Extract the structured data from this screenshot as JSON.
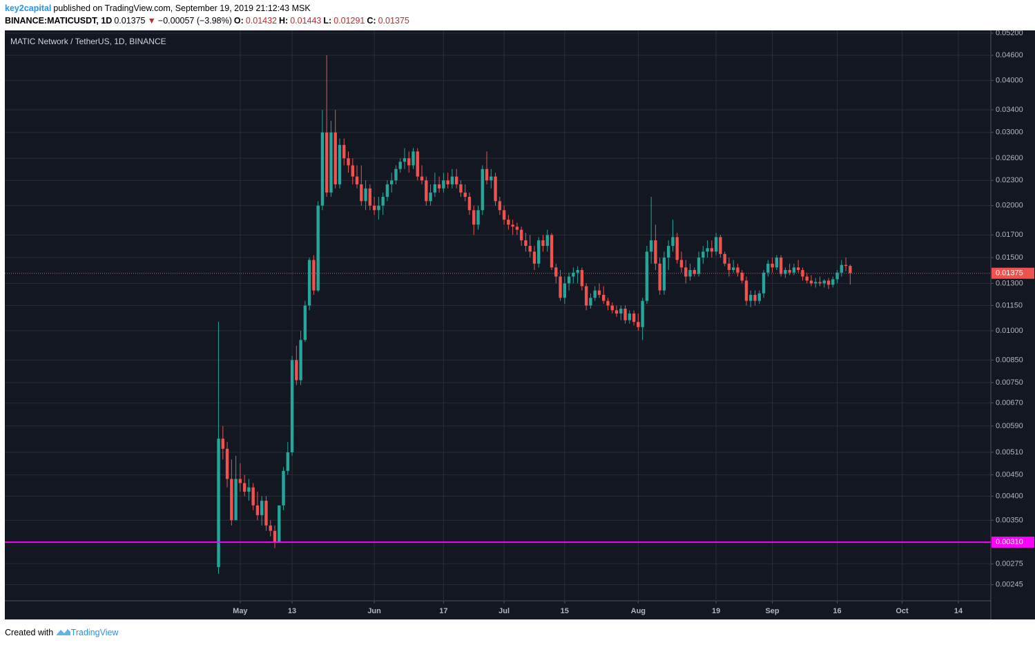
{
  "header": {
    "author": "key2capital",
    "published": "published on TradingView.com, September 19, 2019 21:12:43 MSK",
    "symbol": "BINANCE:MATICUSDT, 1D",
    "last": "0.01375",
    "change": "−0.00057 (−3.98%)",
    "open_label": "O:",
    "open": "0.01432",
    "high_label": "H:",
    "high": "0.01443",
    "low_label": "L:",
    "low": "0.01291",
    "close_label": "C:",
    "close": "0.01375"
  },
  "footer": {
    "created": "Created with",
    "brand": "TradingView"
  },
  "chart_data": {
    "type": "candlestick",
    "title": "MATIC Network / TetherUS, 1D, BINANCE",
    "log_scale": true,
    "grid": true,
    "up_color": "#26a69a",
    "down_color": "#ef5350",
    "xlim": [
      -54.4,
      173.5
    ],
    "ylim": [
      0.00224,
      0.0528
    ],
    "xticks": [
      {
        "value": 0,
        "label": "May"
      },
      {
        "value": 12,
        "label": "13"
      },
      {
        "value": 31,
        "label": "Jun"
      },
      {
        "value": 47,
        "label": "17"
      },
      {
        "value": 61,
        "label": "Jul"
      },
      {
        "value": 75,
        "label": "15"
      },
      {
        "value": 92,
        "label": "Aug"
      },
      {
        "value": 110,
        "label": "19"
      },
      {
        "value": 123,
        "label": "Sep"
      },
      {
        "value": 138,
        "label": "16"
      },
      {
        "value": 153,
        "label": "Oct"
      },
      {
        "value": 166,
        "label": "14"
      }
    ],
    "yticks": [
      {
        "value": 0.052,
        "label": "0.05200"
      },
      {
        "value": 0.046,
        "label": "0.04600"
      },
      {
        "value": 0.04,
        "label": "0.04000"
      },
      {
        "value": 0.034,
        "label": "0.03400"
      },
      {
        "value": 0.03,
        "label": "0.03000"
      },
      {
        "value": 0.026,
        "label": "0.02600"
      },
      {
        "value": 0.023,
        "label": "0.02300"
      },
      {
        "value": 0.02,
        "label": "0.02000"
      },
      {
        "value": 0.017,
        "label": "0.01700"
      },
      {
        "value": 0.015,
        "label": "0.01500"
      },
      {
        "value": 0.013,
        "label": "0.01300"
      },
      {
        "value": 0.0115,
        "label": "0.01150"
      },
      {
        "value": 0.01,
        "label": "0.01000"
      },
      {
        "value": 0.0085,
        "label": "0.00850"
      },
      {
        "value": 0.0075,
        "label": "0.00750"
      },
      {
        "value": 0.0067,
        "label": "0.00670"
      },
      {
        "value": 0.0059,
        "label": "0.00590"
      },
      {
        "value": 0.0051,
        "label": "0.00510"
      },
      {
        "value": 0.0045,
        "label": "0.00450"
      },
      {
        "value": 0.004,
        "label": "0.00400"
      },
      {
        "value": 0.0035,
        "label": "0.00350"
      },
      {
        "value": 0.0031,
        "label": "0.00310"
      },
      {
        "value": 0.00275,
        "label": "0.00275"
      },
      {
        "value": 0.00245,
        "label": "0.00245"
      }
    ],
    "hlines": [
      {
        "value": 0.0031,
        "label": "0.00310",
        "color": "#ff00ff"
      }
    ],
    "last_price": {
      "value": 0.01375,
      "label": "0.01375",
      "color": "#ef5350"
    },
    "x": [
      -5,
      -4,
      -3,
      -2,
      -1,
      0,
      1,
      2,
      3,
      4,
      5,
      6,
      7,
      8,
      9,
      10,
      11,
      12,
      13,
      14,
      15,
      16,
      17,
      18,
      19,
      20,
      21,
      22,
      23,
      24,
      25,
      26,
      27,
      28,
      29,
      30,
      31,
      32,
      33,
      34,
      35,
      36,
      37,
      38,
      39,
      40,
      41,
      42,
      43,
      44,
      45,
      46,
      47,
      48,
      49,
      50,
      51,
      52,
      53,
      54,
      55,
      56,
      57,
      58,
      59,
      60,
      61,
      62,
      63,
      64,
      65,
      66,
      67,
      68,
      69,
      70,
      71,
      72,
      73,
      74,
      75,
      76,
      77,
      78,
      79,
      80,
      81,
      82,
      83,
      84,
      85,
      86,
      87,
      88,
      89,
      90,
      91,
      92,
      93,
      94,
      95,
      96,
      97,
      98,
      99,
      100,
      101,
      102,
      103,
      104,
      105,
      106,
      107,
      108,
      109,
      110,
      111,
      112,
      113,
      114,
      115,
      116,
      117,
      118,
      119,
      120,
      121,
      122,
      123,
      124,
      125,
      126,
      127,
      128,
      129,
      130,
      131,
      132,
      133,
      134,
      135,
      136,
      137,
      138,
      139,
      140,
      141
    ],
    "ohlc": [
      [
        0.0027,
        0.0105,
        0.0026,
        0.0055
      ],
      [
        0.0055,
        0.0059,
        0.0049,
        0.0052
      ],
      [
        0.0052,
        0.0054,
        0.0042,
        0.0044
      ],
      [
        0.0044,
        0.0049,
        0.0034,
        0.0035
      ],
      [
        0.0035,
        0.005,
        0.0035,
        0.0044
      ],
      [
        0.0044,
        0.0048,
        0.0041,
        0.0043
      ],
      [
        0.0043,
        0.0045,
        0.004,
        0.0041
      ],
      [
        0.0041,
        0.0044,
        0.0039,
        0.0042
      ],
      [
        0.0042,
        0.0043,
        0.0037,
        0.0038
      ],
      [
        0.0038,
        0.0041,
        0.0035,
        0.0036
      ],
      [
        0.0036,
        0.004,
        0.0034,
        0.0039
      ],
      [
        0.0039,
        0.004,
        0.0033,
        0.0034
      ],
      [
        0.0034,
        0.0035,
        0.0032,
        0.0033
      ],
      [
        0.0033,
        0.0034,
        0.003,
        0.0031
      ],
      [
        0.0031,
        0.0038,
        0.0031,
        0.0038
      ],
      [
        0.0038,
        0.0047,
        0.0037,
        0.0046
      ],
      [
        0.0046,
        0.0054,
        0.0045,
        0.0051
      ],
      [
        0.0051,
        0.0087,
        0.005,
        0.0085
      ],
      [
        0.0085,
        0.0092,
        0.0074,
        0.0076
      ],
      [
        0.0076,
        0.01,
        0.0074,
        0.0095
      ],
      [
        0.0095,
        0.0118,
        0.0094,
        0.0115
      ],
      [
        0.0115,
        0.015,
        0.0112,
        0.0148
      ],
      [
        0.0148,
        0.0152,
        0.0122,
        0.0125
      ],
      [
        0.0125,
        0.0205,
        0.0124,
        0.02
      ],
      [
        0.02,
        0.034,
        0.0195,
        0.03
      ],
      [
        0.03,
        0.046,
        0.021,
        0.0215
      ],
      [
        0.0215,
        0.032,
        0.021,
        0.03
      ],
      [
        0.03,
        0.034,
        0.022,
        0.0225
      ],
      [
        0.0225,
        0.029,
        0.022,
        0.028
      ],
      [
        0.028,
        0.029,
        0.025,
        0.026
      ],
      [
        0.026,
        0.027,
        0.024,
        0.025
      ],
      [
        0.025,
        0.026,
        0.0225,
        0.0235
      ],
      [
        0.0235,
        0.025,
        0.022,
        0.0225
      ],
      [
        0.0225,
        0.025,
        0.02,
        0.0205
      ],
      [
        0.0205,
        0.023,
        0.0195,
        0.022
      ],
      [
        0.022,
        0.0225,
        0.0195,
        0.02
      ],
      [
        0.02,
        0.021,
        0.019,
        0.0195
      ],
      [
        0.0195,
        0.021,
        0.0185,
        0.02
      ],
      [
        0.02,
        0.0215,
        0.019,
        0.021
      ],
      [
        0.021,
        0.023,
        0.0205,
        0.0225
      ],
      [
        0.0225,
        0.024,
        0.0215,
        0.023
      ],
      [
        0.023,
        0.025,
        0.0225,
        0.0245
      ],
      [
        0.0245,
        0.026,
        0.024,
        0.0255
      ],
      [
        0.0255,
        0.0275,
        0.0245,
        0.026
      ],
      [
        0.026,
        0.027,
        0.024,
        0.025
      ],
      [
        0.025,
        0.0275,
        0.0245,
        0.027
      ],
      [
        0.027,
        0.0275,
        0.023,
        0.0235
      ],
      [
        0.0235,
        0.025,
        0.0225,
        0.023
      ],
      [
        0.023,
        0.0235,
        0.02,
        0.0205
      ],
      [
        0.0205,
        0.0225,
        0.02,
        0.0215
      ],
      [
        0.0215,
        0.024,
        0.021,
        0.0225
      ],
      [
        0.0225,
        0.0235,
        0.0215,
        0.022
      ],
      [
        0.022,
        0.024,
        0.0215,
        0.023
      ],
      [
        0.023,
        0.024,
        0.022,
        0.0225
      ],
      [
        0.0225,
        0.0245,
        0.022,
        0.0235
      ],
      [
        0.0235,
        0.0245,
        0.022,
        0.0225
      ],
      [
        0.0225,
        0.023,
        0.021,
        0.0215
      ],
      [
        0.0215,
        0.0225,
        0.0205,
        0.021
      ],
      [
        0.021,
        0.0215,
        0.019,
        0.0195
      ],
      [
        0.0195,
        0.02,
        0.017,
        0.018
      ],
      [
        0.018,
        0.02,
        0.0175,
        0.0195
      ],
      [
        0.0195,
        0.025,
        0.019,
        0.0245
      ],
      [
        0.0245,
        0.027,
        0.0225,
        0.023
      ],
      [
        0.023,
        0.0245,
        0.022,
        0.0235
      ],
      [
        0.0235,
        0.024,
        0.02,
        0.0205
      ],
      [
        0.0205,
        0.021,
        0.019,
        0.0195
      ],
      [
        0.0195,
        0.02,
        0.018,
        0.0185
      ],
      [
        0.0185,
        0.019,
        0.0175,
        0.018
      ],
      [
        0.018,
        0.0185,
        0.017,
        0.0178
      ],
      [
        0.0178,
        0.0182,
        0.017,
        0.0175
      ],
      [
        0.0175,
        0.0178,
        0.016,
        0.0165
      ],
      [
        0.0165,
        0.0172,
        0.0155,
        0.016
      ],
      [
        0.016,
        0.017,
        0.015,
        0.0155
      ],
      [
        0.0155,
        0.016,
        0.014,
        0.0145
      ],
      [
        0.0145,
        0.0168,
        0.0142,
        0.0165
      ],
      [
        0.0165,
        0.017,
        0.0155,
        0.016
      ],
      [
        0.016,
        0.0175,
        0.0155,
        0.017
      ],
      [
        0.017,
        0.0172,
        0.014,
        0.0142
      ],
      [
        0.0142,
        0.0145,
        0.013,
        0.0135
      ],
      [
        0.0135,
        0.014,
        0.0118,
        0.012
      ],
      [
        0.012,
        0.0135,
        0.0116,
        0.013
      ],
      [
        0.013,
        0.0138,
        0.0125,
        0.0135
      ],
      [
        0.0135,
        0.0142,
        0.013,
        0.0138
      ],
      [
        0.0138,
        0.0143,
        0.013,
        0.014
      ],
      [
        0.014,
        0.0142,
        0.0125,
        0.0128
      ],
      [
        0.0128,
        0.013,
        0.0112,
        0.0115
      ],
      [
        0.0115,
        0.0123,
        0.0113,
        0.012
      ],
      [
        0.012,
        0.0128,
        0.0118,
        0.0125
      ],
      [
        0.0125,
        0.013,
        0.012,
        0.0122
      ],
      [
        0.0122,
        0.0128,
        0.0116,
        0.0118
      ],
      [
        0.0118,
        0.012,
        0.0112,
        0.0115
      ],
      [
        0.0115,
        0.0117,
        0.011,
        0.0112
      ],
      [
        0.0112,
        0.0115,
        0.0108,
        0.011
      ],
      [
        0.011,
        0.0115,
        0.0106,
        0.0113
      ],
      [
        0.0113,
        0.0115,
        0.0104,
        0.0106
      ],
      [
        0.0106,
        0.0112,
        0.0104,
        0.011
      ],
      [
        0.011,
        0.0112,
        0.0103,
        0.0105
      ],
      [
        0.0105,
        0.011,
        0.01,
        0.0102
      ],
      [
        0.0102,
        0.012,
        0.0095,
        0.0118
      ],
      [
        0.0118,
        0.016,
        0.0116,
        0.0155
      ],
      [
        0.0155,
        0.021,
        0.0145,
        0.0165
      ],
      [
        0.0165,
        0.018,
        0.014,
        0.0145
      ],
      [
        0.0145,
        0.015,
        0.0122,
        0.0125
      ],
      [
        0.0125,
        0.0155,
        0.0122,
        0.015
      ],
      [
        0.015,
        0.0165,
        0.014,
        0.016
      ],
      [
        0.016,
        0.0185,
        0.0155,
        0.0168
      ],
      [
        0.0168,
        0.0172,
        0.0145,
        0.0148
      ],
      [
        0.0148,
        0.0155,
        0.0138,
        0.0142
      ],
      [
        0.0142,
        0.0148,
        0.013,
        0.0135
      ],
      [
        0.0135,
        0.0145,
        0.0132,
        0.014
      ],
      [
        0.014,
        0.0142,
        0.0135,
        0.0137
      ],
      [
        0.0137,
        0.0155,
        0.0135,
        0.015
      ],
      [
        0.015,
        0.016,
        0.0145,
        0.0155
      ],
      [
        0.0155,
        0.0165,
        0.015,
        0.0158
      ],
      [
        0.0158,
        0.0165,
        0.015,
        0.0155
      ],
      [
        0.0155,
        0.0172,
        0.0152,
        0.0168
      ],
      [
        0.0168,
        0.017,
        0.015,
        0.0153
      ],
      [
        0.0153,
        0.0155,
        0.0143,
        0.0145
      ],
      [
        0.0145,
        0.015,
        0.0135,
        0.014
      ],
      [
        0.014,
        0.0148,
        0.0138,
        0.0142
      ],
      [
        0.0142,
        0.0145,
        0.0135,
        0.0138
      ],
      [
        0.0138,
        0.014,
        0.013,
        0.0132
      ],
      [
        0.0132,
        0.0135,
        0.0115,
        0.0118
      ],
      [
        0.0118,
        0.0125,
        0.0114,
        0.0122
      ],
      [
        0.0122,
        0.0125,
        0.0115,
        0.0118
      ],
      [
        0.0118,
        0.0125,
        0.0116,
        0.0123
      ],
      [
        0.0123,
        0.014,
        0.012,
        0.0138
      ],
      [
        0.0138,
        0.0148,
        0.0135,
        0.0145
      ],
      [
        0.0145,
        0.015,
        0.0138,
        0.0142
      ],
      [
        0.0142,
        0.0152,
        0.014,
        0.015
      ],
      [
        0.015,
        0.0152,
        0.0135,
        0.0137
      ],
      [
        0.0137,
        0.0142,
        0.0134,
        0.014
      ],
      [
        0.014,
        0.0145,
        0.0136,
        0.0138
      ],
      [
        0.0138,
        0.0145,
        0.0136,
        0.0142
      ],
      [
        0.0142,
        0.0148,
        0.0138,
        0.014
      ],
      [
        0.014,
        0.0142,
        0.0132,
        0.0135
      ],
      [
        0.0135,
        0.0138,
        0.013,
        0.0132
      ],
      [
        0.0132,
        0.0136,
        0.0128,
        0.013
      ],
      [
        0.013,
        0.0134,
        0.0127,
        0.0131
      ],
      [
        0.0131,
        0.0135,
        0.0128,
        0.013
      ],
      [
        0.013,
        0.0133,
        0.0127,
        0.0132
      ],
      [
        0.0132,
        0.0134,
        0.0126,
        0.0129
      ],
      [
        0.0129,
        0.0135,
        0.0127,
        0.0133
      ],
      [
        0.0133,
        0.014,
        0.013,
        0.0138
      ],
      [
        0.0138,
        0.0148,
        0.0135,
        0.0144
      ],
      [
        0.0144,
        0.015,
        0.0139,
        0.01432
      ],
      [
        0.01432,
        0.01443,
        0.01291,
        0.01375
      ]
    ]
  }
}
